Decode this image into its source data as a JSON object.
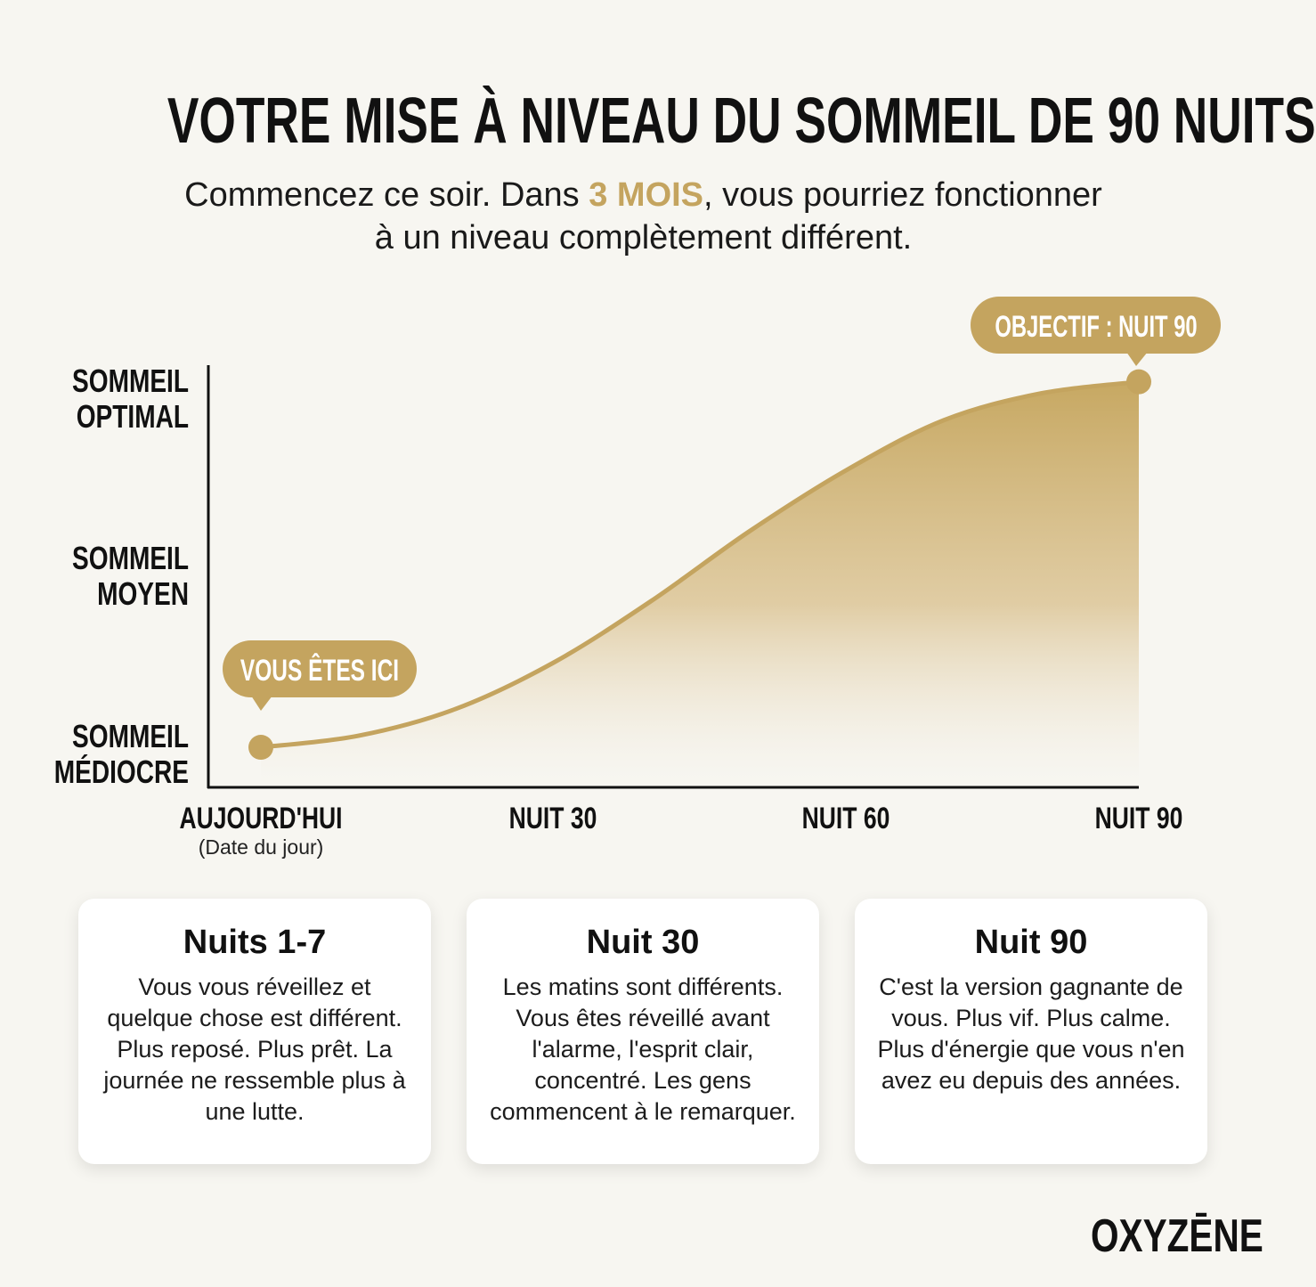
{
  "header": {
    "title": "VOTRE MISE À NIVEAU DU SOMMEIL DE 90 NUITS",
    "subtitle_part1": "Commencez ce soir. Dans ",
    "subtitle_highlight": "3 MOIS",
    "subtitle_part2": ", vous pourriez fonctionner à un niveau complètement différent."
  },
  "chart_data": {
    "type": "area",
    "x_categories": [
      "AUJOURD'HUI",
      "NUIT 30",
      "NUIT 60",
      "NUIT 90"
    ],
    "x_sublabel": "(Date du jour)",
    "y_levels": [
      {
        "line1": "SOMMEIL",
        "line2": "MÉDIOCRE"
      },
      {
        "line1": "SOMMEIL",
        "line2": "MOYEN"
      },
      {
        "line1": "SOMMEIL",
        "line2": "OPTIMAL"
      }
    ],
    "ylim": [
      0,
      1
    ],
    "xlim": [
      0,
      90
    ],
    "series": [
      {
        "x": [
          0,
          10,
          20,
          30,
          40,
          50,
          60,
          70,
          80,
          90
        ],
        "values": [
          0.03,
          0.06,
          0.13,
          0.25,
          0.41,
          0.59,
          0.75,
          0.88,
          0.95,
          0.98
        ]
      }
    ],
    "start_label": "VOUS ÊTES ICI",
    "end_label": "OBJECTIF : NUIT 90",
    "accent_color": "#c4a45f"
  },
  "cards": [
    {
      "title": "Nuits 1-7",
      "text": "Vous vous réveillez et quelque chose est différent. Plus reposé. Plus prêt. La journée ne ressemble plus à une lutte."
    },
    {
      "title": "Nuit 30",
      "text": "Les matins sont différents. Vous êtes réveillé avant l'alarme, l'esprit clair, concentré. Les gens commencent à le remarquer."
    },
    {
      "title": "Nuit 90",
      "text": "C'est la version gagnante de vous. Plus vif. Plus calme. Plus d'énergie que vous n'en avez eu depuis des années."
    }
  ],
  "brand": "OXYZĒNE"
}
